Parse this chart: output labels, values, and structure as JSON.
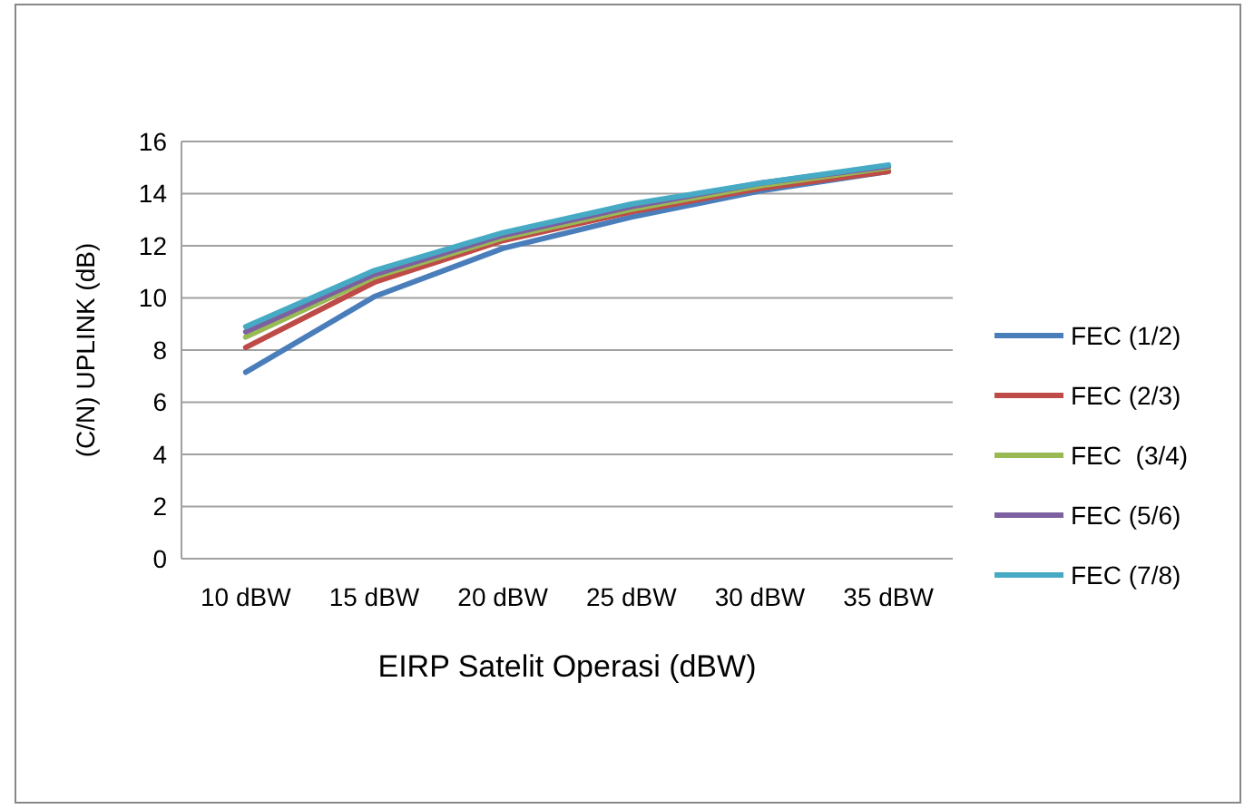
{
  "chart_data": {
    "type": "line",
    "xlabel": "EIRP Satelit Operasi (dBW)",
    "ylabel": "(C/N) UPLINK (dB)",
    "categories": [
      "10 dBW",
      "15 dBW",
      "20 dBW",
      "25 dBW",
      "30 dBW",
      "35 dBW"
    ],
    "series": [
      {
        "name": "FEC (1/2)",
        "color": "#4a7ebb",
        "values": [
          7.15,
          10.05,
          11.9,
          13.1,
          14.1,
          14.85
        ]
      },
      {
        "name": "FEC (2/3)",
        "color": "#be4b48",
        "values": [
          8.1,
          10.6,
          12.2,
          13.3,
          14.2,
          14.85
        ]
      },
      {
        "name": "FEC  (3/4)",
        "color": "#98b954",
        "values": [
          8.5,
          10.8,
          12.3,
          13.4,
          14.3,
          15.0
        ]
      },
      {
        "name": "FEC (5/6)",
        "color": "#7d60a0",
        "values": [
          8.7,
          10.9,
          12.4,
          13.5,
          14.4,
          15.05
        ]
      },
      {
        "name": "FEC (7/8)",
        "color": "#46aac5",
        "values": [
          8.9,
          11.05,
          12.5,
          13.6,
          14.4,
          15.1
        ]
      }
    ],
    "ylim": [
      0,
      16
    ],
    "yticks": [
      0,
      2,
      4,
      6,
      8,
      10,
      12,
      14,
      16
    ],
    "grid": "y",
    "legend": "right",
    "marker": "none",
    "line_style": "solid"
  }
}
